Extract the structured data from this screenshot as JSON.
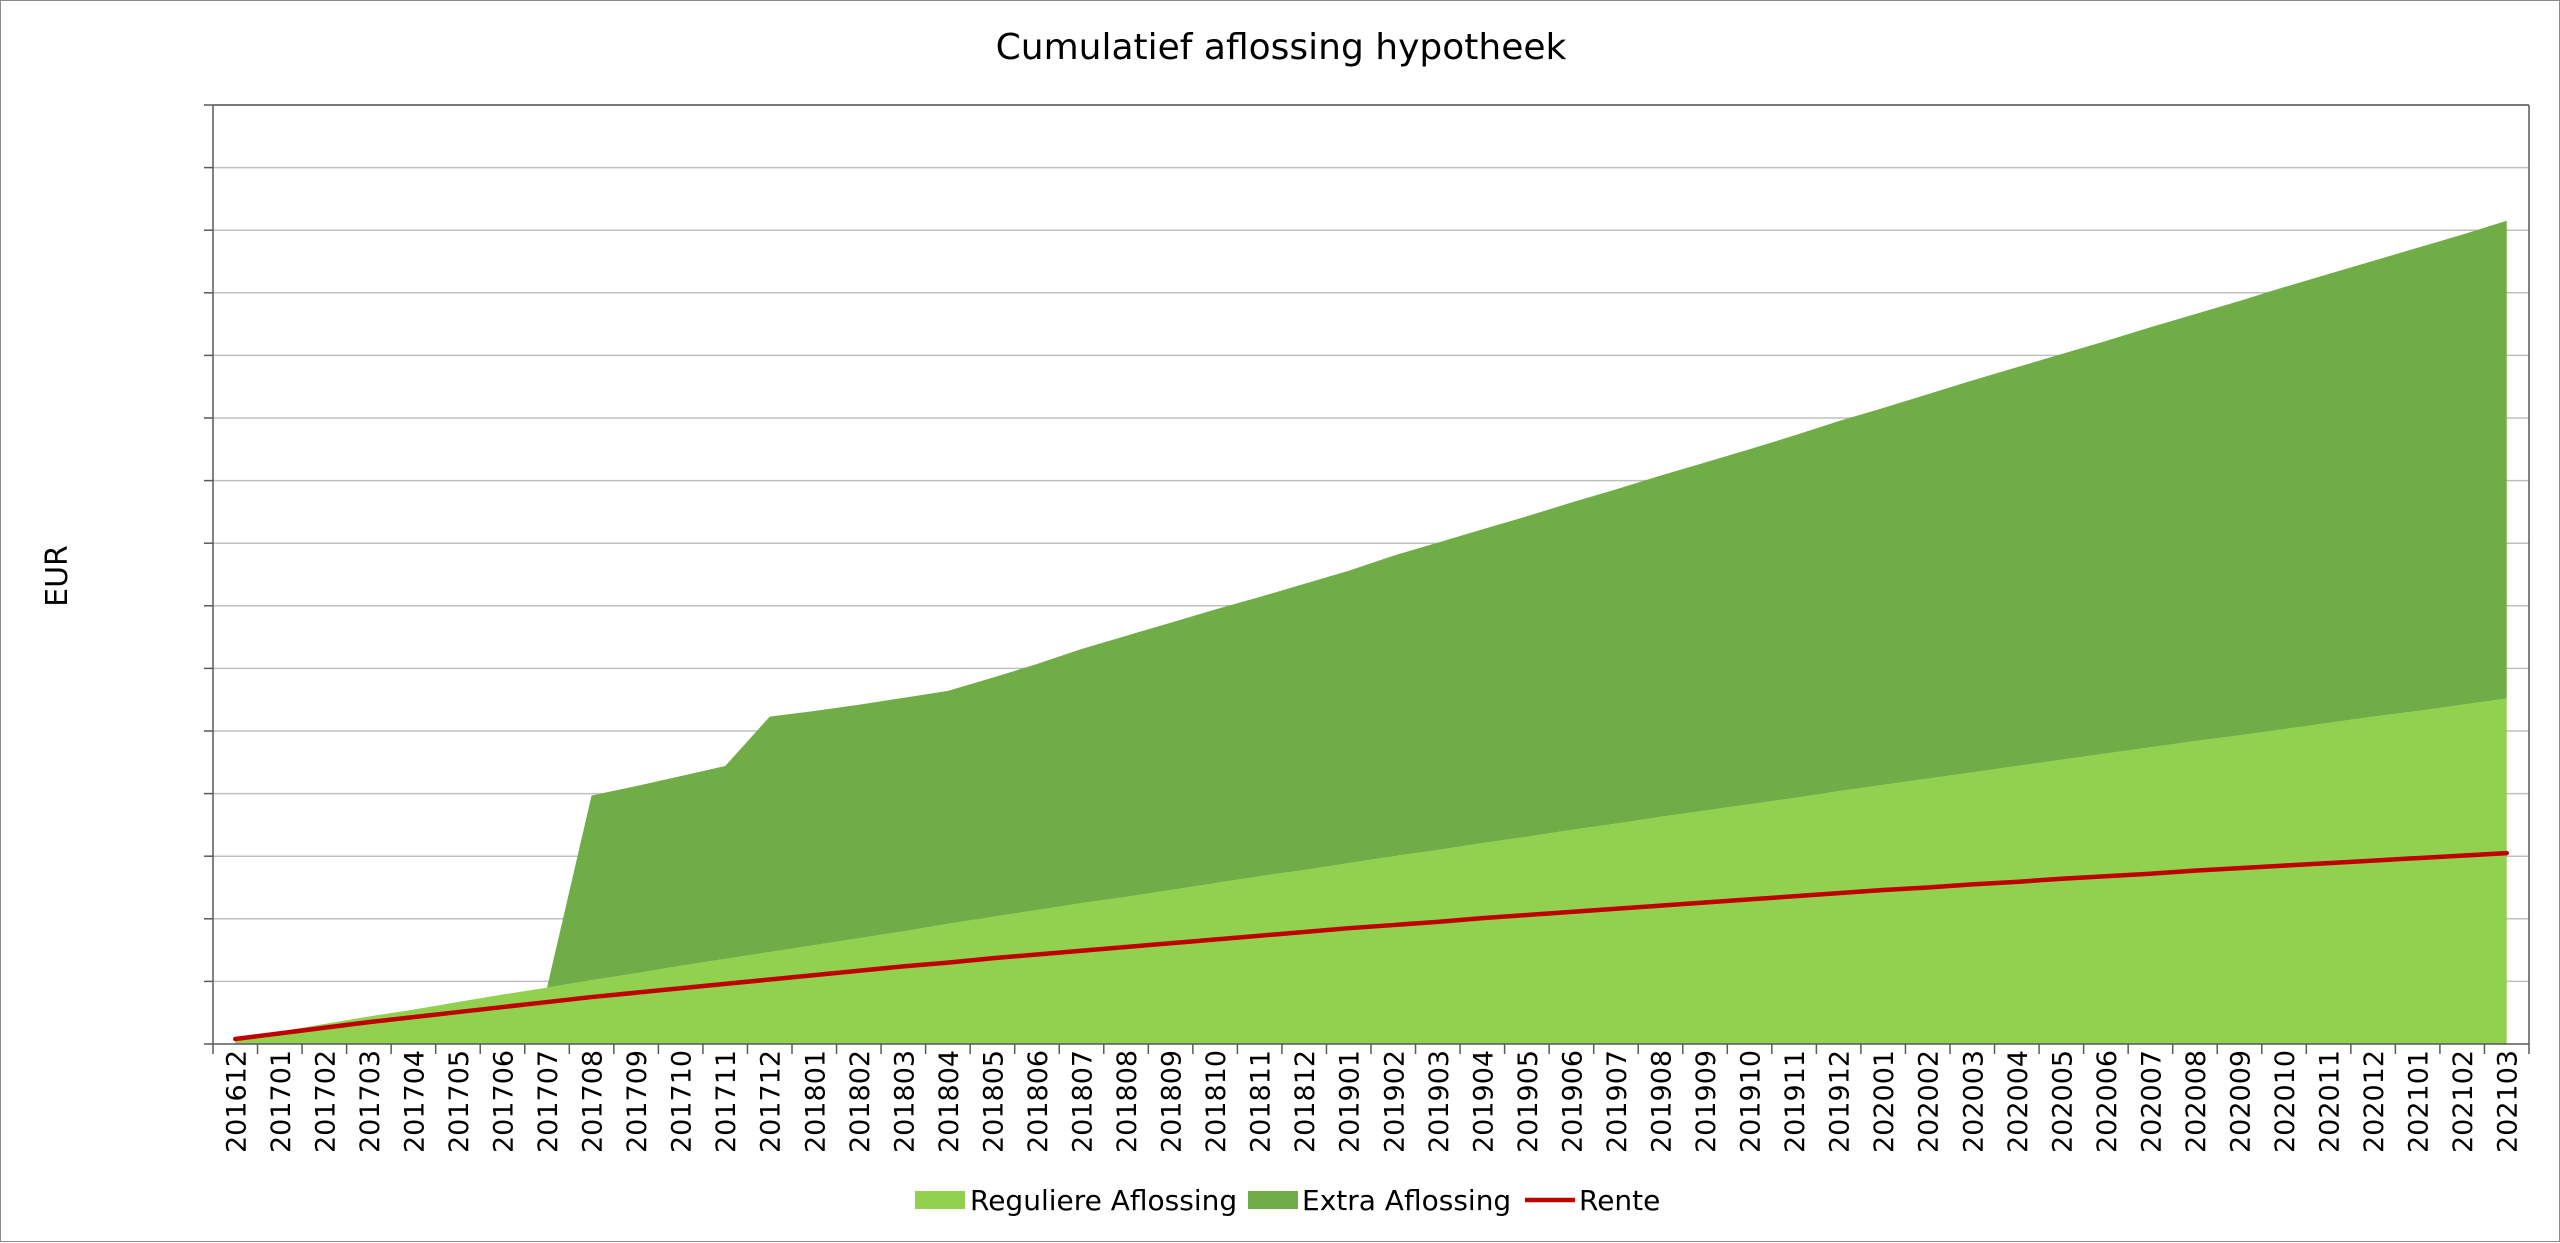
{
  "chart_data": {
    "type": "area",
    "title": "Cumulatief aflossing hypotheek",
    "xlabel": "",
    "ylabel": "EUR",
    "stacked": true,
    "y_tick_labels_shown": false,
    "y_tick_count": 15,
    "ylim": [
      0,
      15
    ],
    "grid": true,
    "legend_position": "bottom",
    "categories": [
      "201612",
      "201701",
      "201702",
      "201703",
      "201704",
      "201705",
      "201706",
      "201707",
      "201708",
      "201709",
      "201710",
      "201711",
      "201712",
      "201801",
      "201802",
      "201803",
      "201804",
      "201805",
      "201806",
      "201807",
      "201808",
      "201809",
      "201810",
      "201811",
      "201812",
      "201901",
      "201902",
      "201903",
      "201904",
      "201905",
      "201906",
      "201907",
      "201908",
      "201909",
      "201910",
      "201911",
      "201912",
      "202001",
      "202002",
      "202003",
      "202004",
      "202005",
      "202006",
      "202007",
      "202008",
      "202009",
      "202010",
      "202011",
      "202012",
      "202101",
      "202102",
      "202103"
    ],
    "series": [
      {
        "name": "Reguliere Aflossing",
        "kind": "area",
        "color": "#92D050",
        "values": [
          0.08,
          0.2,
          0.32,
          0.44,
          0.55,
          0.67,
          0.79,
          0.9,
          1.02,
          1.13,
          1.25,
          1.36,
          1.47,
          1.58,
          1.69,
          1.8,
          1.92,
          2.03,
          2.14,
          2.25,
          2.35,
          2.46,
          2.57,
          2.68,
          2.78,
          2.89,
          3.0,
          3.1,
          3.21,
          3.31,
          3.42,
          3.52,
          3.63,
          3.73,
          3.83,
          3.93,
          4.04,
          4.14,
          4.24,
          4.34,
          4.44,
          4.54,
          4.64,
          4.74,
          4.84,
          4.93,
          5.03,
          5.13,
          5.23,
          5.32,
          5.42,
          5.52
        ]
      },
      {
        "name": "Extra Aflossing",
        "kind": "area",
        "color": "#70AD47",
        "values": [
          0,
          0,
          0,
          0,
          0,
          0,
          0,
          0,
          2.95,
          2.99,
          3.03,
          3.08,
          3.76,
          3.74,
          3.73,
          3.73,
          3.72,
          3.82,
          3.93,
          4.06,
          4.17,
          4.27,
          4.37,
          4.46,
          4.57,
          4.67,
          4.8,
          4.91,
          5.01,
          5.12,
          5.23,
          5.34,
          5.45,
          5.56,
          5.67,
          5.79,
          5.91,
          6.02,
          6.14,
          6.26,
          6.37,
          6.48,
          6.59,
          6.71,
          6.82,
          6.94,
          7.06,
          7.17,
          7.28,
          7.4,
          7.51,
          7.63
        ]
      },
      {
        "name": "Rente",
        "kind": "line",
        "color": "#C00000",
        "values": [
          0.08,
          0.17,
          0.26,
          0.35,
          0.43,
          0.51,
          0.59,
          0.67,
          0.75,
          0.82,
          0.89,
          0.96,
          1.03,
          1.1,
          1.17,
          1.24,
          1.3,
          1.37,
          1.43,
          1.49,
          1.55,
          1.61,
          1.67,
          1.73,
          1.79,
          1.85,
          1.9,
          1.95,
          2.01,
          2.06,
          2.11,
          2.16,
          2.21,
          2.26,
          2.31,
          2.36,
          2.41,
          2.46,
          2.5,
          2.55,
          2.59,
          2.64,
          2.68,
          2.72,
          2.77,
          2.81,
          2.85,
          2.89,
          2.93,
          2.97,
          3.01,
          3.05
        ]
      }
    ]
  }
}
